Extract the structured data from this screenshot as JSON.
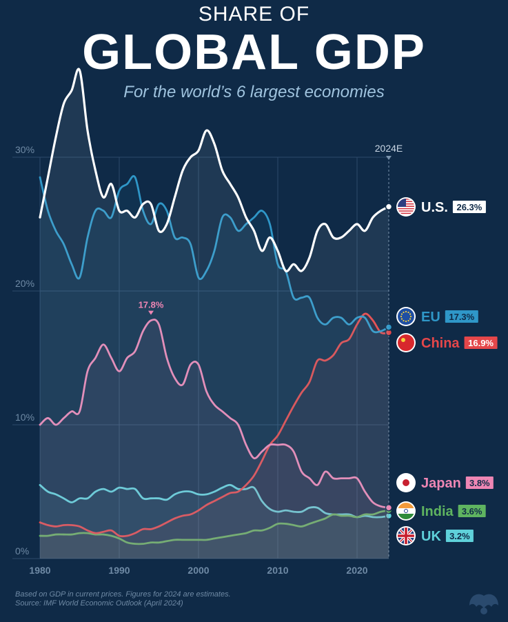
{
  "header": {
    "title_top": "SHARE OF",
    "title_main": "GLOBAL GDP",
    "subtitle": "For the world’s 6 largest economies"
  },
  "footer": {
    "note": "Based on GDP in current prices. Figures for 2024 are estimates.",
    "source": "Source: IMF World Economic Outlook (April 2024)"
  },
  "chart_data": {
    "type": "line",
    "title": "Share of Global GDP",
    "xlim": [
      1980,
      2024
    ],
    "ylim": [
      0,
      30
    ],
    "x_ticks": [
      "1980",
      "1990",
      "2000",
      "2010",
      "2020"
    ],
    "y_ticks": [
      "0%",
      "10%",
      "20%",
      "30%"
    ],
    "marker_label": "2024E",
    "peak_annotation": {
      "series": "Japan",
      "year": 1994,
      "value": 17.8,
      "label": "17.8%"
    },
    "series": [
      {
        "name": "U.S.",
        "label": "U.S.",
        "value_label": "26.3%",
        "color": "#ffffff",
        "badge_text": "#0f2a47",
        "icon": "us-flag-icon",
        "points": [
          [
            1980,
            25.5
          ],
          [
            1981,
            28.5
          ],
          [
            1982,
            31.5
          ],
          [
            1983,
            34
          ],
          [
            1984,
            35
          ],
          [
            1985,
            36.5
          ],
          [
            1986,
            32
          ],
          [
            1987,
            29
          ],
          [
            1988,
            27
          ],
          [
            1989,
            28
          ],
          [
            1990,
            26
          ],
          [
            1991,
            26
          ],
          [
            1992,
            25.5
          ],
          [
            1993,
            26.5
          ],
          [
            1994,
            26.5
          ],
          [
            1995,
            24.5
          ],
          [
            1996,
            25
          ],
          [
            1997,
            27
          ],
          [
            1998,
            29
          ],
          [
            1999,
            30
          ],
          [
            2000,
            30.5
          ],
          [
            2001,
            32
          ],
          [
            2002,
            31
          ],
          [
            2003,
            29
          ],
          [
            2004,
            28
          ],
          [
            2005,
            27
          ],
          [
            2006,
            25.5
          ],
          [
            2007,
            24.5
          ],
          [
            2008,
            23
          ],
          [
            2009,
            24
          ],
          [
            2010,
            23
          ],
          [
            2011,
            21.5
          ],
          [
            2012,
            22
          ],
          [
            2013,
            21.5
          ],
          [
            2014,
            22.5
          ],
          [
            2015,
            24.5
          ],
          [
            2016,
            25
          ],
          [
            2017,
            24
          ],
          [
            2018,
            24
          ],
          [
            2019,
            24.5
          ],
          [
            2020,
            25
          ],
          [
            2021,
            24.5
          ],
          [
            2022,
            25.5
          ],
          [
            2023,
            26
          ],
          [
            2024,
            26.3
          ]
        ]
      },
      {
        "name": "EU",
        "label": "EU",
        "value_label": "17.3%",
        "color": "#2f97c8",
        "badge_text": "#0f2a47",
        "icon": "eu-flag-icon",
        "points": [
          [
            1980,
            28.5
          ],
          [
            1981,
            26
          ],
          [
            1982,
            24.5
          ],
          [
            1983,
            23.5
          ],
          [
            1984,
            22
          ],
          [
            1985,
            21
          ],
          [
            1986,
            24
          ],
          [
            1987,
            26
          ],
          [
            1988,
            26
          ],
          [
            1989,
            25.5
          ],
          [
            1990,
            27.5
          ],
          [
            1991,
            28
          ],
          [
            1992,
            28.5
          ],
          [
            1993,
            26
          ],
          [
            1994,
            25
          ],
          [
            1995,
            26.5
          ],
          [
            1996,
            26
          ],
          [
            1997,
            24
          ],
          [
            1998,
            24
          ],
          [
            1999,
            23.5
          ],
          [
            2000,
            21
          ],
          [
            2001,
            21.5
          ],
          [
            2002,
            23
          ],
          [
            2003,
            25.5
          ],
          [
            2004,
            25.5
          ],
          [
            2005,
            24.5
          ],
          [
            2006,
            25
          ],
          [
            2007,
            25.5
          ],
          [
            2008,
            26
          ],
          [
            2009,
            25
          ],
          [
            2010,
            22
          ],
          [
            2011,
            21.5
          ],
          [
            2012,
            19.5
          ],
          [
            2013,
            19.5
          ],
          [
            2014,
            19.5
          ],
          [
            2015,
            18
          ],
          [
            2016,
            17.5
          ],
          [
            2017,
            18
          ],
          [
            2018,
            18
          ],
          [
            2019,
            17.5
          ],
          [
            2020,
            18
          ],
          [
            2021,
            18
          ],
          [
            2022,
            17
          ],
          [
            2023,
            17
          ],
          [
            2024,
            17.3
          ]
        ]
      },
      {
        "name": "China",
        "label": "China",
        "value_label": "16.9%",
        "color": "#e5474a",
        "badge_text": "#ffffff",
        "icon": "china-flag-icon",
        "points": [
          [
            1980,
            2.7
          ],
          [
            1981,
            2.5
          ],
          [
            1982,
            2.4
          ],
          [
            1983,
            2.5
          ],
          [
            1984,
            2.5
          ],
          [
            1985,
            2.4
          ],
          [
            1986,
            2.1
          ],
          [
            1987,
            1.9
          ],
          [
            1988,
            2.0
          ],
          [
            1989,
            2.1
          ],
          [
            1990,
            1.7
          ],
          [
            1991,
            1.7
          ],
          [
            1992,
            1.9
          ],
          [
            1993,
            2.2
          ],
          [
            1994,
            2.2
          ],
          [
            1995,
            2.4
          ],
          [
            1996,
            2.7
          ],
          [
            1997,
            3.0
          ],
          [
            1998,
            3.2
          ],
          [
            1999,
            3.3
          ],
          [
            2000,
            3.6
          ],
          [
            2001,
            4.0
          ],
          [
            2002,
            4.3
          ],
          [
            2003,
            4.6
          ],
          [
            2004,
            4.9
          ],
          [
            2005,
            5.0
          ],
          [
            2006,
            5.5
          ],
          [
            2007,
            6.2
          ],
          [
            2008,
            7.3
          ],
          [
            2009,
            8.5
          ],
          [
            2010,
            9.2
          ],
          [
            2011,
            10.3
          ],
          [
            2012,
            11.4
          ],
          [
            2013,
            12.4
          ],
          [
            2014,
            13.2
          ],
          [
            2015,
            14.8
          ],
          [
            2016,
            14.8
          ],
          [
            2017,
            15.2
          ],
          [
            2018,
            16.1
          ],
          [
            2019,
            16.4
          ],
          [
            2020,
            17.5
          ],
          [
            2021,
            18.3
          ],
          [
            2022,
            17.8
          ],
          [
            2023,
            16.9
          ],
          [
            2024,
            16.9
          ]
        ]
      },
      {
        "name": "Japan",
        "label": "Japan",
        "value_label": "3.8%",
        "color": "#ee86b4",
        "badge_text": "#0f2a47",
        "icon": "japan-flag-icon",
        "points": [
          [
            1980,
            10.0
          ],
          [
            1981,
            10.5
          ],
          [
            1982,
            10.0
          ],
          [
            1983,
            10.5
          ],
          [
            1984,
            11.0
          ],
          [
            1985,
            11.0
          ],
          [
            1986,
            14.0
          ],
          [
            1987,
            15.0
          ],
          [
            1988,
            16.0
          ],
          [
            1989,
            15.0
          ],
          [
            1990,
            14.0
          ],
          [
            1991,
            15.0
          ],
          [
            1992,
            15.5
          ],
          [
            1993,
            17.0
          ],
          [
            1994,
            17.8
          ],
          [
            1995,
            17.5
          ],
          [
            1996,
            15.0
          ],
          [
            1997,
            13.5
          ],
          [
            1998,
            13.0
          ],
          [
            1999,
            14.5
          ],
          [
            2000,
            14.5
          ],
          [
            2001,
            12.5
          ],
          [
            2002,
            11.5
          ],
          [
            2003,
            11.0
          ],
          [
            2004,
            10.5
          ],
          [
            2005,
            10.0
          ],
          [
            2006,
            8.5
          ],
          [
            2007,
            7.5
          ],
          [
            2008,
            8.0
          ],
          [
            2009,
            8.5
          ],
          [
            2010,
            8.5
          ],
          [
            2011,
            8.5
          ],
          [
            2012,
            8.0
          ],
          [
            2013,
            6.5
          ],
          [
            2014,
            6.0
          ],
          [
            2015,
            5.5
          ],
          [
            2016,
            6.5
          ],
          [
            2017,
            6.0
          ],
          [
            2018,
            6.0
          ],
          [
            2019,
            6.0
          ],
          [
            2020,
            6.0
          ],
          [
            2021,
            5.0
          ],
          [
            2022,
            4.2
          ],
          [
            2023,
            3.9
          ],
          [
            2024,
            3.8
          ]
        ]
      },
      {
        "name": "India",
        "label": "India",
        "value_label": "3.6%",
        "color": "#5fb460",
        "badge_text": "#0f2a47",
        "icon": "india-flag-icon",
        "points": [
          [
            1980,
            1.7
          ],
          [
            1981,
            1.7
          ],
          [
            1982,
            1.8
          ],
          [
            1983,
            1.8
          ],
          [
            1984,
            1.8
          ],
          [
            1985,
            1.9
          ],
          [
            1986,
            1.9
          ],
          [
            1987,
            1.8
          ],
          [
            1988,
            1.8
          ],
          [
            1989,
            1.7
          ],
          [
            1990,
            1.5
          ],
          [
            1991,
            1.2
          ],
          [
            1992,
            1.1
          ],
          [
            1993,
            1.1
          ],
          [
            1994,
            1.2
          ],
          [
            1995,
            1.2
          ],
          [
            1996,
            1.3
          ],
          [
            1997,
            1.4
          ],
          [
            1998,
            1.4
          ],
          [
            1999,
            1.4
          ],
          [
            2000,
            1.4
          ],
          [
            2001,
            1.4
          ],
          [
            2002,
            1.5
          ],
          [
            2003,
            1.6
          ],
          [
            2004,
            1.7
          ],
          [
            2005,
            1.8
          ],
          [
            2006,
            1.9
          ],
          [
            2007,
            2.1
          ],
          [
            2008,
            2.1
          ],
          [
            2009,
            2.3
          ],
          [
            2010,
            2.6
          ],
          [
            2011,
            2.6
          ],
          [
            2012,
            2.5
          ],
          [
            2013,
            2.4
          ],
          [
            2014,
            2.6
          ],
          [
            2015,
            2.8
          ],
          [
            2016,
            3.0
          ],
          [
            2017,
            3.3
          ],
          [
            2018,
            3.2
          ],
          [
            2019,
            3.2
          ],
          [
            2020,
            3.1
          ],
          [
            2021,
            3.3
          ],
          [
            2022,
            3.3
          ],
          [
            2023,
            3.5
          ],
          [
            2024,
            3.6
          ]
        ]
      },
      {
        "name": "UK",
        "label": "UK",
        "value_label": "3.2%",
        "color": "#5fd1da",
        "badge_text": "#0f2a47",
        "icon": "uk-flag-icon",
        "points": [
          [
            1980,
            5.5
          ],
          [
            1981,
            5.0
          ],
          [
            1982,
            4.8
          ],
          [
            1983,
            4.5
          ],
          [
            1984,
            4.2
          ],
          [
            1985,
            4.5
          ],
          [
            1986,
            4.5
          ],
          [
            1987,
            5.0
          ],
          [
            1988,
            5.2
          ],
          [
            1989,
            5.0
          ],
          [
            1990,
            5.3
          ],
          [
            1991,
            5.2
          ],
          [
            1992,
            5.2
          ],
          [
            1993,
            4.5
          ],
          [
            1994,
            4.5
          ],
          [
            1995,
            4.5
          ],
          [
            1996,
            4.4
          ],
          [
            1997,
            4.8
          ],
          [
            1998,
            5.0
          ],
          [
            1999,
            5.0
          ],
          [
            2000,
            4.8
          ],
          [
            2001,
            4.8
          ],
          [
            2002,
            5.0
          ],
          [
            2003,
            5.3
          ],
          [
            2004,
            5.5
          ],
          [
            2005,
            5.2
          ],
          [
            2006,
            5.2
          ],
          [
            2007,
            5.3
          ],
          [
            2008,
            4.3
          ],
          [
            2009,
            3.7
          ],
          [
            2010,
            3.5
          ],
          [
            2011,
            3.6
          ],
          [
            2012,
            3.5
          ],
          [
            2013,
            3.5
          ],
          [
            2014,
            3.8
          ],
          [
            2015,
            3.8
          ],
          [
            2016,
            3.4
          ],
          [
            2017,
            3.3
          ],
          [
            2018,
            3.3
          ],
          [
            2019,
            3.3
          ],
          [
            2020,
            3.1
          ],
          [
            2021,
            3.2
          ],
          [
            2022,
            3.1
          ],
          [
            2023,
            3.1
          ],
          [
            2024,
            3.2
          ]
        ]
      }
    ]
  }
}
